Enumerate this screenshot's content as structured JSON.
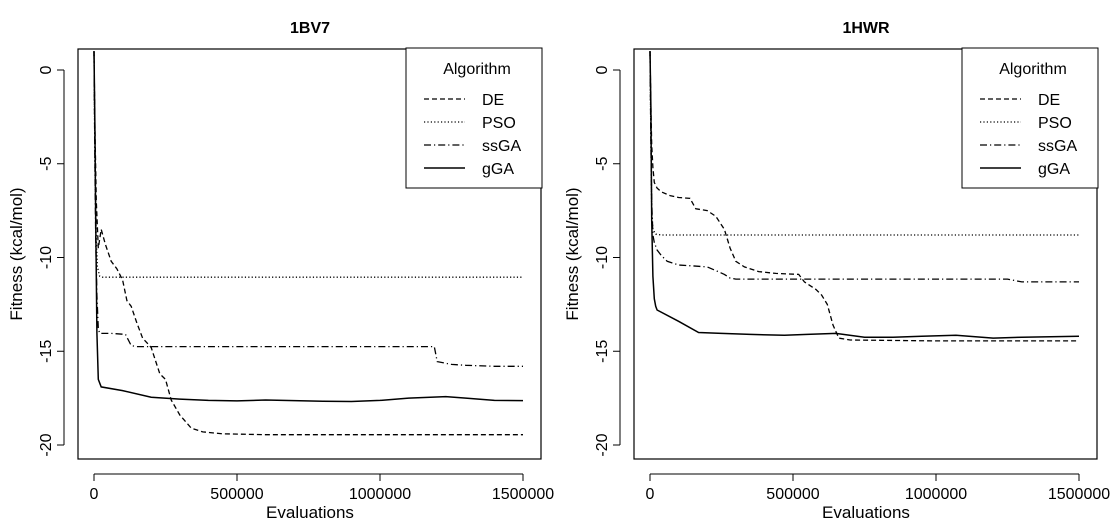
{
  "chart_data": [
    {
      "type": "line",
      "title": "1BV7",
      "xlabel": "Evaluations",
      "ylabel": "Fitness (kcal/mol)",
      "xlim": [
        0,
        1500000
      ],
      "ylim": [
        -21,
        1
      ],
      "xticks": [
        "0",
        "500000",
        "1000000",
        "1500000"
      ],
      "yticks": [
        "0",
        "-5",
        "-10",
        "-15",
        "-20"
      ],
      "legend": {
        "title": "Algorithm",
        "position": "top-right"
      },
      "series": [
        {
          "name": "DE",
          "style": "dashed",
          "x": [
            0,
            3000,
            8000,
            15000,
            25000,
            40000,
            60000,
            80000,
            100000,
            115000,
            130000,
            150000,
            170000,
            200000,
            230000,
            250000,
            270000,
            300000,
            340000,
            380000,
            450000,
            600000,
            800000,
            1000000,
            1200000,
            1500000
          ],
          "y": [
            1,
            -3,
            -7,
            -9.5,
            -8.5,
            -9.3,
            -10.2,
            -10.6,
            -11.2,
            -12.3,
            -12.6,
            -13.5,
            -14.3,
            -14.8,
            -16.2,
            -16.5,
            -17.6,
            -18.4,
            -19.1,
            -19.3,
            -19.4,
            -19.45,
            -19.45,
            -19.45,
            -19.45,
            -19.45
          ]
        },
        {
          "name": "PSO",
          "style": "dotted",
          "x": [
            0,
            3000,
            8000,
            12000,
            20000,
            30000,
            100000,
            500000,
            1000000,
            1500000
          ],
          "y": [
            1,
            -5,
            -9,
            -10.5,
            -11.0,
            -11.05,
            -11.05,
            -11.05,
            -11.05,
            -11.05
          ]
        },
        {
          "name": "ssGA",
          "style": "dotdash",
          "x": [
            0,
            3000,
            6000,
            10000,
            15000,
            20000,
            60000,
            110000,
            130000,
            150000,
            500000,
            1000000,
            1190000,
            1200000,
            1250000,
            1300000,
            1400000,
            1500000
          ],
          "y": [
            1,
            -5,
            -9,
            -12,
            -13.8,
            -14.05,
            -14.05,
            -14.1,
            -14.7,
            -14.75,
            -14.75,
            -14.75,
            -14.75,
            -15.55,
            -15.7,
            -15.75,
            -15.8,
            -15.8
          ]
        },
        {
          "name": "gGA",
          "style": "solid",
          "x": [
            0,
            3000,
            6000,
            10000,
            15000,
            25000,
            100000,
            200000,
            300000,
            400000,
            500000,
            600000,
            700000,
            800000,
            900000,
            1000000,
            1100000,
            1230000,
            1300000,
            1400000,
            1500000
          ],
          "y": [
            1,
            -3,
            -8,
            -14,
            -16.5,
            -16.9,
            -17.1,
            -17.45,
            -17.55,
            -17.62,
            -17.65,
            -17.6,
            -17.63,
            -17.67,
            -17.68,
            -17.62,
            -17.5,
            -17.42,
            -17.5,
            -17.62,
            -17.63
          ]
        }
      ]
    },
    {
      "type": "line",
      "title": "1HWR",
      "xlabel": "Evaluations",
      "ylabel": "Fitness (kcal/mol)",
      "xlim": [
        0,
        1500000
      ],
      "ylim": [
        -21,
        1
      ],
      "xticks": [
        "0",
        "500000",
        "1000000",
        "1500000"
      ],
      "yticks": [
        "0",
        "-5",
        "-10",
        "-15",
        "-20"
      ],
      "legend": {
        "title": "Algorithm",
        "position": "top-right"
      },
      "series": [
        {
          "name": "DE",
          "style": "dashed",
          "x": [
            0,
            3000,
            6000,
            10000,
            15000,
            25000,
            40000,
            70000,
            100000,
            140000,
            160000,
            200000,
            230000,
            260000,
            280000,
            300000,
            330000,
            380000,
            440000,
            520000,
            540000,
            580000,
            600000,
            620000,
            640000,
            660000,
            700000,
            1000000,
            1500000
          ],
          "y": [
            1,
            -2,
            -4,
            -5.2,
            -6,
            -6.3,
            -6.5,
            -6.7,
            -6.8,
            -6.85,
            -7.4,
            -7.5,
            -7.8,
            -8.5,
            -9.5,
            -10.2,
            -10.5,
            -10.75,
            -10.85,
            -10.9,
            -11.3,
            -11.7,
            -12.0,
            -12.5,
            -13.6,
            -14.3,
            -14.4,
            -14.45,
            -14.45
          ]
        },
        {
          "name": "PSO",
          "style": "dotted",
          "x": [
            0,
            3000,
            6000,
            10000,
            20000,
            40000,
            100000,
            500000,
            1000000,
            1500000
          ],
          "y": [
            1,
            -4,
            -7.5,
            -8.5,
            -8.75,
            -8.8,
            -8.8,
            -8.8,
            -8.8,
            -8.8
          ]
        },
        {
          "name": "ssGA",
          "style": "dotdash",
          "x": [
            0,
            3000,
            6000,
            10000,
            15000,
            25000,
            40000,
            60000,
            100000,
            150000,
            200000,
            230000,
            260000,
            280000,
            300000,
            500000,
            1000000,
            1250000,
            1300000,
            1500000
          ],
          "y": [
            1,
            -4,
            -7,
            -8.8,
            -9.2,
            -9.6,
            -9.9,
            -10.2,
            -10.4,
            -10.45,
            -10.5,
            -10.7,
            -10.9,
            -11.1,
            -11.15,
            -11.15,
            -11.15,
            -11.15,
            -11.3,
            -11.3
          ]
        },
        {
          "name": "gGA",
          "style": "solid",
          "x": [
            0,
            3000,
            6000,
            10000,
            15000,
            20000,
            25000,
            100000,
            170000,
            250000,
            350000,
            470000,
            550000,
            650000,
            750000,
            850000,
            950000,
            1070000,
            1200000,
            1300000,
            1500000
          ],
          "y": [
            1,
            -2,
            -8,
            -11,
            -12.2,
            -12.6,
            -12.8,
            -13.4,
            -14.0,
            -14.05,
            -14.1,
            -14.15,
            -14.1,
            -14.05,
            -14.25,
            -14.25,
            -14.2,
            -14.15,
            -14.3,
            -14.25,
            -14.2
          ]
        }
      ]
    }
  ]
}
